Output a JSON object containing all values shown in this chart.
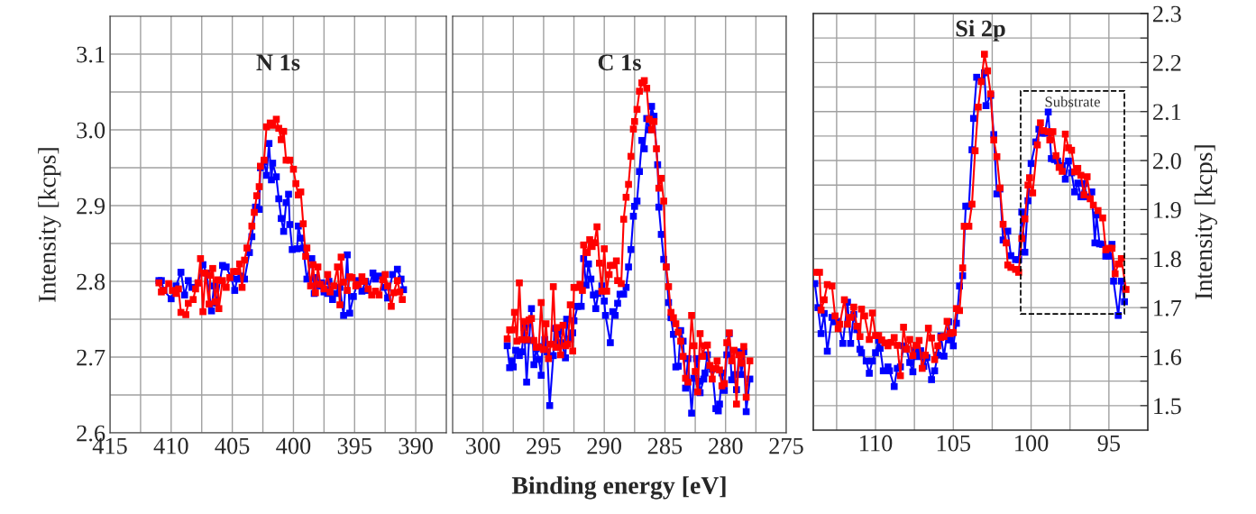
{
  "chart_data": [
    {
      "type": "line",
      "title": "N 1s",
      "ylabel": "Intensity [kcps]",
      "marker": "square",
      "grid": true,
      "xlim": [
        415,
        387.5
      ],
      "xticks": [
        415,
        {
          "value": 412.5,
          "label": null
        },
        410,
        {
          "value": 407.5,
          "label": null
        },
        405,
        {
          "value": 402.5,
          "label": null
        },
        400,
        {
          "value": 397.5,
          "label": null
        },
        395,
        {
          "value": 392.5,
          "label": null
        },
        390
      ],
      "ylim": [
        2.6,
        3.15
      ],
      "yticks": [
        2.6,
        {
          "value": 2.65,
          "label": null
        },
        2.7,
        {
          "value": 2.75,
          "label": null
        },
        2.8,
        {
          "value": 2.85,
          "label": null
        },
        2.9,
        {
          "value": 2.95,
          "label": null
        },
        {
          "value": 3,
          "label": "3.0"
        },
        {
          "value": 3.05,
          "label": null
        },
        3.1
      ],
      "series": [
        {
          "color": "#0000ff",
          "x": [
            411.0,
            410.8,
            410.6,
            410.0,
            409.6,
            409.2,
            408.9,
            408.6,
            408.3,
            407.8,
            407.4,
            407.1,
            406.7,
            406.5,
            406.3,
            405.8,
            405.5,
            405.1,
            404.8,
            404.6,
            404.3,
            404.0,
            403.6,
            403.4,
            403.1,
            402.8,
            402.7,
            402.4,
            402.2,
            402.0,
            401.8,
            401.7,
            401.4,
            401.2,
            401.0,
            400.8,
            400.6,
            400.4,
            400.3,
            400.1,
            399.7,
            399.6,
            399.4,
            399.2,
            398.9,
            398.5,
            398.3,
            398.2,
            398.0,
            397.7,
            397.5,
            397.2,
            397.1,
            396.8,
            396.5,
            396.2,
            395.9,
            395.6,
            395.4,
            395.1,
            394.7,
            394.4,
            394.1,
            393.9,
            393.5,
            393.3,
            393.0,
            392.6,
            392.3,
            391.9,
            391.5,
            391.2,
            391.0
          ],
          "values": [
            2.801,
            2.801,
            2.788,
            2.777,
            2.794,
            2.812,
            2.782,
            2.801,
            2.792,
            2.798,
            2.822,
            2.811,
            2.761,
            2.794,
            2.771,
            2.821,
            2.819,
            2.805,
            2.788,
            2.803,
            2.807,
            2.803,
            2.838,
            2.859,
            2.898,
            2.895,
            2.95,
            2.958,
            2.94,
            2.982,
            2.934,
            2.956,
            2.938,
            2.909,
            2.883,
            2.866,
            2.904,
            2.915,
            2.875,
            2.842,
            2.843,
            2.873,
            2.857,
            2.844,
            2.803,
            2.83,
            2.784,
            2.805,
            2.794,
            2.798,
            2.786,
            2.784,
            2.8,
            2.776,
            2.784,
            2.792,
            2.755,
            2.835,
            2.758,
            2.78,
            2.801,
            2.787,
            2.8,
            2.788,
            2.811,
            2.803,
            2.807,
            2.792,
            2.778,
            2.809,
            2.816,
            2.803,
            2.789
          ]
        },
        {
          "color": "#ff0000",
          "x": [
            411.0,
            410.8,
            410.6,
            410.2,
            409.9,
            409.6,
            409.4,
            409.2,
            408.8,
            408.6,
            408.2,
            408.0,
            407.8,
            407.6,
            407.4,
            407.2,
            406.9,
            406.8,
            406.6,
            406.4,
            406.2,
            406.1,
            405.8,
            405.5,
            405.2,
            404.9,
            404.6,
            404.4,
            404.2,
            404.0,
            403.8,
            403.4,
            403.2,
            403.0,
            402.8,
            402.7,
            402.4,
            402.2,
            401.9,
            401.7,
            401.4,
            401.2,
            401.0,
            400.8,
            400.6,
            400.3,
            400.0,
            399.8,
            399.6,
            399.4,
            399.2,
            399.0,
            398.9,
            398.6,
            398.4,
            398.2,
            398.0,
            397.8,
            397.5,
            397.2,
            397.0,
            396.7,
            396.4,
            396.2,
            396.1,
            395.9,
            395.6,
            395.4,
            395.2,
            394.9,
            394.7,
            394.4,
            394.2,
            393.9,
            393.6,
            393.3,
            393.0,
            392.7,
            392.5,
            392.3,
            392.0,
            391.8,
            391.5,
            391.3,
            391.1
          ],
          "values": [
            2.798,
            2.786,
            2.788,
            2.797,
            2.788,
            2.784,
            2.79,
            2.759,
            2.756,
            2.771,
            2.776,
            2.79,
            2.798,
            2.83,
            2.76,
            2.811,
            2.77,
            2.808,
            2.817,
            2.773,
            2.802,
            2.764,
            2.801,
            2.792,
            2.805,
            2.813,
            2.813,
            2.823,
            2.792,
            2.828,
            2.844,
            2.873,
            2.891,
            2.913,
            2.925,
            2.952,
            2.96,
            3.004,
            3.009,
            3.006,
            3.014,
            3.002,
            2.987,
            2.998,
            2.96,
            2.96,
            2.948,
            2.929,
            2.914,
            2.918,
            2.876,
            2.833,
            2.844,
            2.794,
            2.822,
            2.785,
            2.819,
            2.796,
            2.79,
            2.809,
            2.786,
            2.794,
            2.819,
            2.769,
            2.832,
            2.799,
            2.788,
            2.806,
            2.805,
            2.794,
            2.796,
            2.806,
            2.8,
            2.79,
            2.782,
            2.787,
            2.782,
            2.802,
            2.809,
            2.794,
            2.767,
            2.785,
            2.801,
            2.786,
            2.776
          ]
        }
      ]
    },
    {
      "type": "line",
      "title": "C 1s",
      "xlabel": "Binding energy [eV]",
      "marker": "square",
      "grid": true,
      "tick_labels": "x",
      "xlim": [
        302.5,
        275
      ],
      "xticks": [
        300,
        {
          "value": 297.5,
          "label": null
        },
        295,
        {
          "value": 292.5,
          "label": null
        },
        290,
        {
          "value": 287.5,
          "label": null
        },
        285,
        {
          "value": 282.5,
          "label": null
        },
        280,
        {
          "value": 277.5,
          "label": null
        },
        275
      ],
      "ylim": [
        2.6,
        3.15
      ],
      "yticks": [
        2.6,
        {
          "value": 2.65,
          "label": null
        },
        2.7,
        {
          "value": 2.75,
          "label": null
        },
        2.8,
        {
          "value": 2.85,
          "label": null
        },
        2.9,
        {
          "value": 2.95,
          "label": null
        },
        3.0,
        {
          "value": 3.05,
          "label": null
        },
        3.1
      ],
      "series": [
        {
          "color": "#0000ff",
          "x": [
            298.0,
            297.8,
            297.6,
            297.5,
            297.3,
            297.0,
            296.8,
            296.6,
            296.4,
            296.2,
            296.0,
            295.8,
            295.6,
            295.4,
            295.2,
            295.1,
            294.9,
            294.7,
            294.5,
            294.2,
            294.1,
            293.9,
            293.7,
            293.5,
            293.2,
            293.1,
            292.8,
            292.6,
            292.5,
            292.2,
            291.9,
            291.7,
            291.5,
            291.3,
            291.1,
            290.9,
            290.7,
            290.5,
            290.2,
            290.0,
            289.9,
            289.5,
            289.3,
            289.1,
            288.9,
            288.7,
            288.4,
            288.2,
            288.0,
            287.8,
            287.6,
            287.5,
            287.3,
            287.1,
            286.9,
            286.7,
            286.5,
            286.3,
            286.1,
            285.9,
            285.6,
            285.5,
            285.3,
            285.1,
            284.9,
            284.7,
            284.5,
            284.3,
            284.1,
            283.9,
            283.7,
            283.5,
            283.3,
            283.1,
            282.8,
            282.6,
            282.4,
            282.2,
            282.1,
            281.8,
            281.7,
            281.5,
            281.3,
            281.1,
            280.8,
            280.6,
            280.5,
            280.3,
            280.1,
            279.9,
            279.7,
            279.5,
            279.3,
            279.1,
            278.9,
            278.7,
            278.5,
            278.3,
            278.0
          ],
          "values": [
            2.715,
            2.686,
            2.695,
            2.687,
            2.709,
            2.702,
            2.707,
            2.739,
            2.667,
            2.722,
            2.764,
            2.69,
            2.711,
            2.697,
            2.676,
            2.714,
            2.723,
            2.707,
            2.636,
            2.702,
            2.738,
            2.713,
            2.734,
            2.719,
            2.699,
            2.75,
            2.724,
            2.732,
            2.748,
            2.767,
            2.767,
            2.83,
            2.795,
            2.823,
            2.803,
            2.782,
            2.764,
            2.784,
            2.794,
            2.774,
            2.755,
            2.719,
            2.76,
            2.755,
            2.771,
            2.783,
            2.783,
            2.792,
            2.819,
            2.842,
            2.886,
            2.899,
            2.906,
            2.945,
            2.986,
            2.975,
            3.015,
            3.0,
            3.031,
            3.018,
            2.954,
            2.898,
            2.862,
            2.829,
            2.819,
            2.772,
            2.752,
            2.73,
            2.687,
            2.688,
            2.735,
            2.721,
            2.659,
            2.698,
            2.626,
            2.672,
            2.698,
            2.668,
            2.653,
            2.671,
            2.679,
            2.703,
            2.688,
            2.684,
            2.632,
            2.629,
            2.638,
            2.679,
            2.656,
            2.703,
            2.731,
            2.67,
            2.677,
            2.657,
            2.707,
            2.677,
            2.707,
            2.628,
            2.671
          ]
        },
        {
          "color": "#ff0000",
          "x": [
            298.0,
            297.8,
            297.6,
            297.4,
            297.2,
            297.0,
            296.8,
            296.6,
            296.4,
            296.2,
            296.0,
            295.8,
            295.6,
            295.4,
            295.2,
            295.0,
            294.8,
            294.6,
            294.4,
            294.2,
            294.0,
            293.9,
            293.6,
            293.4,
            293.2,
            293.0,
            292.8,
            292.6,
            292.5,
            292.2,
            292.0,
            291.8,
            291.7,
            291.4,
            291.2,
            291.0,
            290.8,
            290.6,
            290.4,
            290.2,
            290.0,
            289.8,
            289.6,
            289.5,
            289.3,
            289.0,
            288.9,
            288.6,
            288.4,
            288.2,
            288.0,
            287.8,
            287.6,
            287.5,
            287.3,
            287.1,
            286.9,
            286.7,
            286.5,
            286.3,
            286.1,
            285.9,
            285.7,
            285.5,
            285.3,
            285.1,
            284.9,
            284.7,
            284.5,
            284.3,
            284.1,
            283.9,
            283.7,
            283.5,
            283.3,
            283.1,
            282.8,
            282.6,
            282.5,
            282.3,
            282.1,
            281.9,
            281.7,
            281.5,
            281.3,
            281.1,
            280.9,
            280.7,
            280.5,
            280.3,
            280.1,
            279.9,
            279.7,
            279.5,
            279.3,
            279.1,
            278.9,
            278.7,
            278.5,
            278.3,
            278.0
          ],
          "values": [
            2.724,
            2.736,
            2.736,
            2.759,
            2.721,
            2.798,
            2.723,
            2.747,
            2.723,
            2.749,
            2.751,
            2.722,
            2.713,
            2.713,
            2.772,
            2.71,
            2.744,
            2.698,
            2.717,
            2.793,
            2.713,
            2.739,
            2.703,
            2.742,
            2.715,
            2.717,
            2.769,
            2.708,
            2.792,
            2.792,
            2.796,
            2.788,
            2.848,
            2.838,
            2.855,
            2.846,
            2.851,
            2.872,
            2.824,
            2.787,
            2.843,
            2.787,
            2.809,
            2.821,
            2.821,
            2.827,
            2.801,
            2.797,
            2.882,
            2.911,
            2.928,
            2.965,
            3.001,
            3.011,
            3.027,
            3.051,
            3.062,
            3.065,
            3.055,
            3.014,
            3.0,
            3.011,
            2.975,
            2.923,
            2.936,
            2.906,
            2.819,
            2.793,
            2.759,
            2.752,
            2.744,
            2.733,
            2.721,
            2.701,
            2.672,
            2.667,
            2.755,
            2.715,
            2.681,
            2.654,
            2.731,
            2.701,
            2.715,
            2.716,
            2.689,
            2.671,
            2.685,
            2.695,
            2.683,
            2.662,
            2.665,
            2.719,
            2.732,
            2.695,
            2.709,
            2.638,
            2.703,
            2.692,
            2.714,
            2.647,
            2.695
          ]
        }
      ]
    },
    {
      "type": "line",
      "title": "Si 2p",
      "y2label": "Intensity [kcps]",
      "marker": "square",
      "grid": true,
      "xlim": [
        114,
        92.5
      ],
      "xticks": [
        {
          "value": 112.5,
          "label": null
        },
        110,
        {
          "value": 107.5,
          "label": null
        },
        105,
        {
          "value": 102.5,
          "label": null
        },
        100,
        {
          "value": 97.5,
          "label": null
        },
        95
      ],
      "y2lim": [
        1.45,
        2.3
      ],
      "y2ticks": [
        1.5,
        {
          "value": 1.55,
          "label": null
        },
        1.6,
        {
          "value": 1.65,
          "label": null
        },
        1.7,
        {
          "value": 1.75,
          "label": null
        },
        1.8,
        {
          "value": 1.85,
          "label": null
        },
        1.9,
        {
          "value": 1.95,
          "label": null
        },
        {
          "value": 2,
          "label": "2.0"
        },
        {
          "value": 2.05,
          "label": null
        },
        2.1,
        {
          "value": 2.15,
          "label": null
        },
        2.2,
        {
          "value": 2.25,
          "label": null
        },
        2.3
      ],
      "annotations": [
        "Substrate"
      ],
      "series": [
        {
          "color": "#0000ff",
          "axis": "y2",
          "x": [
            113.9,
            113.7,
            113.5,
            113.3,
            113.1,
            112.8,
            112.6,
            112.4,
            112.1,
            111.8,
            111.6,
            111.4,
            111.2,
            111.0,
            110.9,
            110.6,
            110.4,
            110.2,
            110.0,
            109.8,
            109.7,
            109.5,
            109.2,
            109.1,
            108.8,
            108.6,
            108.4,
            108.2,
            108.0,
            107.8,
            107.6,
            107.5,
            107.3,
            107.1,
            106.9,
            106.7,
            106.4,
            106.2,
            106.0,
            105.8,
            105.6,
            105.3,
            105.2,
            105.0,
            104.8,
            104.6,
            104.4,
            104.2,
            104.0,
            103.8,
            103.7,
            103.5,
            103.2,
            103.0,
            102.9,
            102.6,
            102.4,
            102.2,
            102.0,
            101.8,
            101.5,
            101.3,
            101.0,
            100.8,
            100.6,
            100.4,
            100.2,
            100.0,
            99.7,
            99.5,
            99.3,
            99.1,
            98.9,
            98.7,
            98.5,
            98.3,
            98.0,
            97.8,
            97.6,
            97.4,
            97.2,
            97.0,
            96.8,
            96.6,
            96.4,
            96.1,
            95.9,
            95.8,
            95.6,
            95.4,
            95.2,
            95.0,
            94.8,
            94.7,
            94.4,
            94.2,
            94.0
          ],
          "values": [
            1.749,
            1.7,
            1.647,
            1.688,
            1.611,
            1.68,
            1.671,
            1.672,
            1.627,
            1.711,
            1.627,
            1.686,
            1.655,
            1.615,
            1.608,
            1.591,
            1.566,
            1.591,
            1.608,
            1.633,
            1.617,
            1.571,
            1.579,
            1.571,
            1.539,
            1.576,
            1.579,
            1.622,
            1.615,
            1.588,
            1.569,
            1.612,
            1.6,
            1.612,
            1.58,
            1.598,
            1.553,
            1.571,
            1.603,
            1.642,
            1.601,
            1.671,
            1.634,
            1.622,
            1.668,
            1.744,
            1.765,
            1.907,
            1.907,
            2.022,
            2.086,
            2.17,
            2.163,
            2.179,
            2.112,
            2.133,
            2.053,
            1.932,
            1.942,
            1.838,
            1.856,
            1.806,
            1.798,
            1.798,
            1.895,
            1.813,
            1.918,
            1.994,
            2.038,
            2.064,
            2.056,
            2.056,
            2.099,
            2.004,
            2.002,
            1.999,
            1.99,
            1.962,
            1.999,
            1.975,
            1.936,
            1.954,
            1.926,
            1.953,
            1.926,
            1.936,
            1.832,
            1.889,
            1.83,
            1.829,
            1.805,
            1.805,
            1.829,
            1.754,
            1.684,
            1.754,
            1.712
          ]
        },
        {
          "color": "#ff0000",
          "axis": "y2",
          "x": [
            113.9,
            113.6,
            113.5,
            113.3,
            113.1,
            112.8,
            112.6,
            112.4,
            112.3,
            112.0,
            111.8,
            111.6,
            111.4,
            111.2,
            111.0,
            110.9,
            110.7,
            110.4,
            110.2,
            110.0,
            109.8,
            109.6,
            109.4,
            109.2,
            109.0,
            108.8,
            108.6,
            108.4,
            108.2,
            108.0,
            107.8,
            107.6,
            107.4,
            107.2,
            107.0,
            106.8,
            106.6,
            106.4,
            106.2,
            106.0,
            105.8,
            105.6,
            105.4,
            105.2,
            105.0,
            104.8,
            104.6,
            104.4,
            104.3,
            104.0,
            103.8,
            103.6,
            103.4,
            103.2,
            103.0,
            102.8,
            102.6,
            102.4,
            102.2,
            102.0,
            101.8,
            101.6,
            101.5,
            101.3,
            101.0,
            100.8,
            100.6,
            100.4,
            100.2,
            100.1,
            99.9,
            99.6,
            99.4,
            99.2,
            98.9,
            98.8,
            98.6,
            98.4,
            98.2,
            98.0,
            97.8,
            97.6,
            97.4,
            97.2,
            97.0,
            96.8,
            96.6,
            96.4,
            96.2,
            96.0,
            95.7,
            95.4,
            95.2,
            95.0,
            94.8,
            94.6,
            94.4,
            94.2,
            93.9
          ],
          "values": [
            1.772,
            1.772,
            1.695,
            1.716,
            1.747,
            1.744,
            1.683,
            1.657,
            1.666,
            1.716,
            1.666,
            1.68,
            1.701,
            1.662,
            1.641,
            1.697,
            1.683,
            1.635,
            1.689,
            1.643,
            1.643,
            1.634,
            1.628,
            1.622,
            1.629,
            1.639,
            1.623,
            1.561,
            1.66,
            1.615,
            1.635,
            1.602,
            1.623,
            1.633,
            1.576,
            1.603,
            1.658,
            1.638,
            1.594,
            1.622,
            1.639,
            1.641,
            1.672,
            1.647,
            1.649,
            1.698,
            1.694,
            1.781,
            1.866,
            1.866,
            1.911,
            2.02,
            2.109,
            2.161,
            2.217,
            2.183,
            2.136,
            2.042,
            2.008,
            1.944,
            1.87,
            1.832,
            1.787,
            1.782,
            1.778,
            1.772,
            1.841,
            1.881,
            1.95,
            1.965,
            1.934,
            2.032,
            2.077,
            2.061,
            2.059,
            2.042,
            2.059,
            2.01,
            1.986,
            1.978,
            2.054,
            2.026,
            2.021,
            1.977,
            1.984,
            1.97,
            1.93,
            1.967,
            1.922,
            1.909,
            1.898,
            1.883,
            1.818,
            1.821,
            1.821,
            1.769,
            1.789,
            1.8,
            1.737
          ]
        }
      ]
    }
  ]
}
